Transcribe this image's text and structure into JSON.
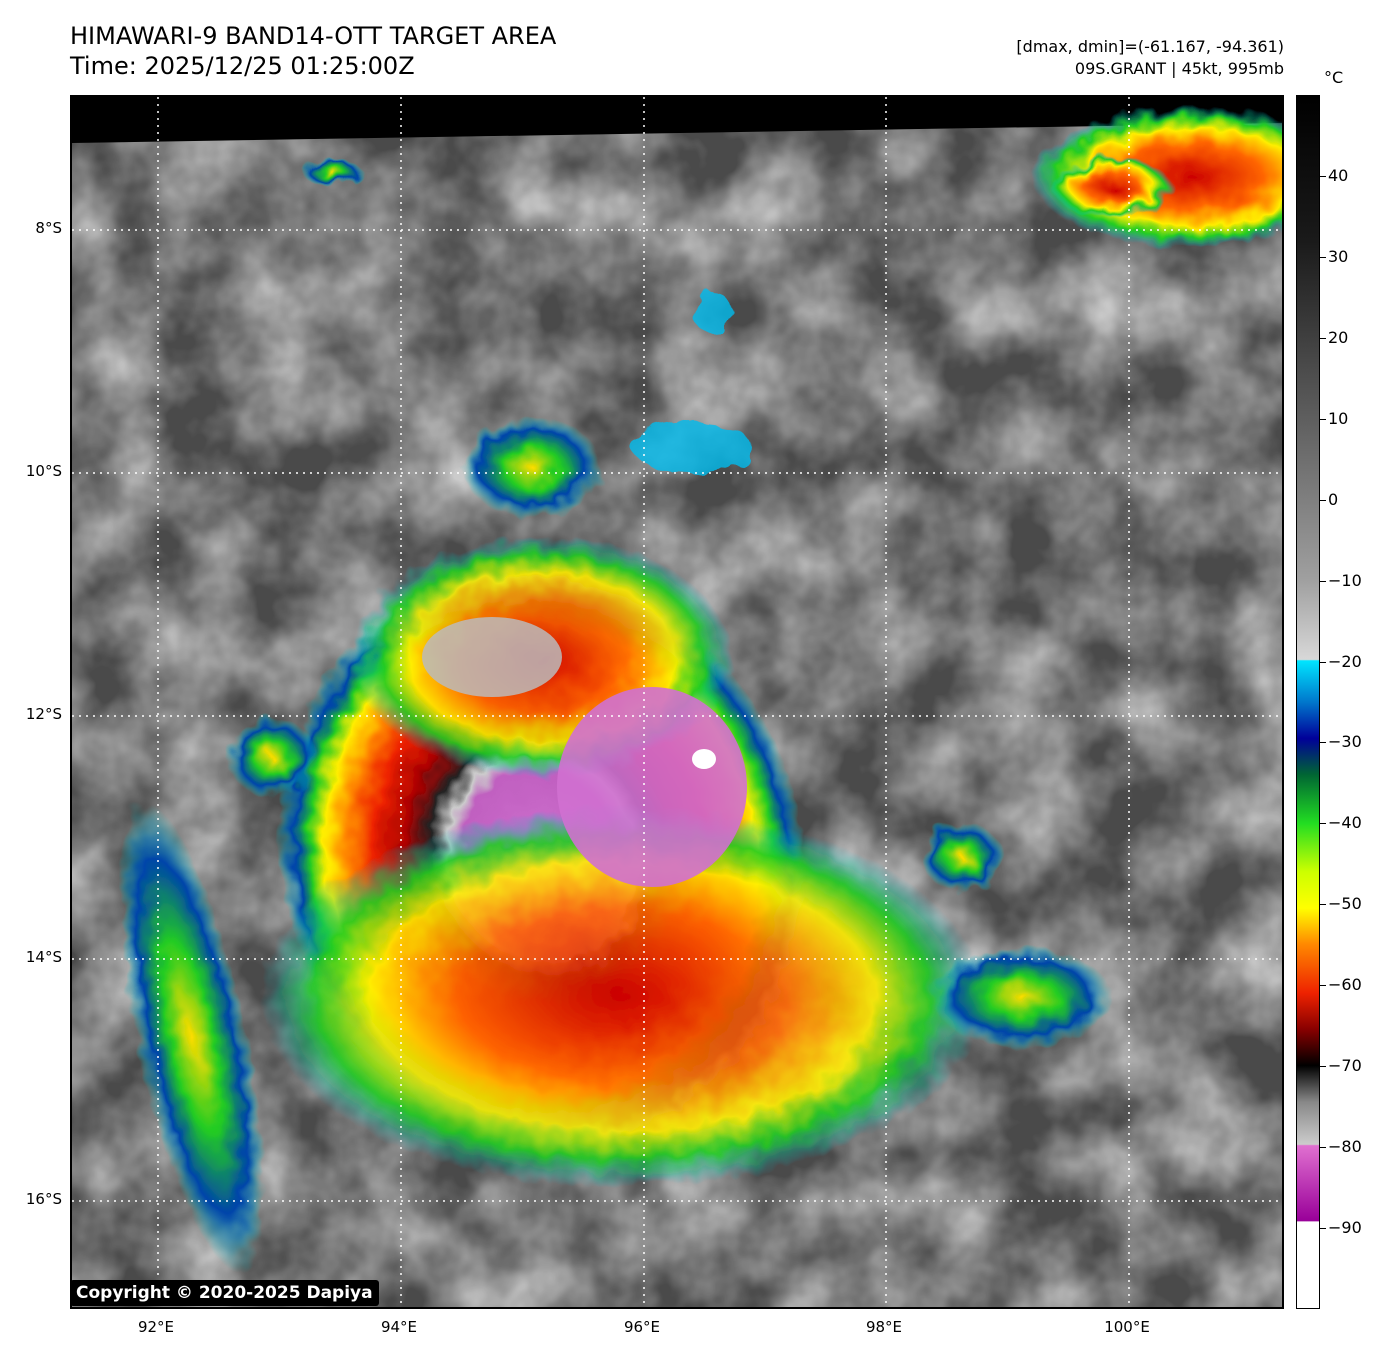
{
  "header": {
    "title_line1": "HIMAWARI-9 BAND14-OTT TARGET AREA",
    "title_line2": "Time: 2025/12/25 01:25:00Z",
    "dmax_dmin": "[dmax, dmin]=(-61.167, -94.361)",
    "storm_info": "09S.GRANT | 45kt, 995mb"
  },
  "map": {
    "latitude_labels": [
      "8°S",
      "10°S",
      "12°S",
      "14°S",
      "16°S"
    ],
    "longitude_labels": [
      "92°E",
      "94°E",
      "96°E",
      "98°E",
      "100°E"
    ],
    "gridlines": "dotted-white"
  },
  "colorbar": {
    "unit": "°C",
    "tick_labels": [
      "40",
      "30",
      "20",
      "10",
      "0",
      "−10",
      "−20",
      "−30",
      "−40",
      "−50",
      "−60",
      "−70",
      "−80",
      "−90"
    ],
    "range": [
      50,
      -100
    ],
    "colors": {
      "warm": "#000000",
      "cyan": "#00e5ff",
      "blue": "#0033aa",
      "green": "#22dd22",
      "yellow": "#ffff00",
      "orange": "#ff8800",
      "red": "#dd0000",
      "magenta": "#e070d0",
      "purple": "#990099",
      "white": "#ffffff"
    }
  },
  "copyright": "Copyright © 2020-2025 Dapiya"
}
